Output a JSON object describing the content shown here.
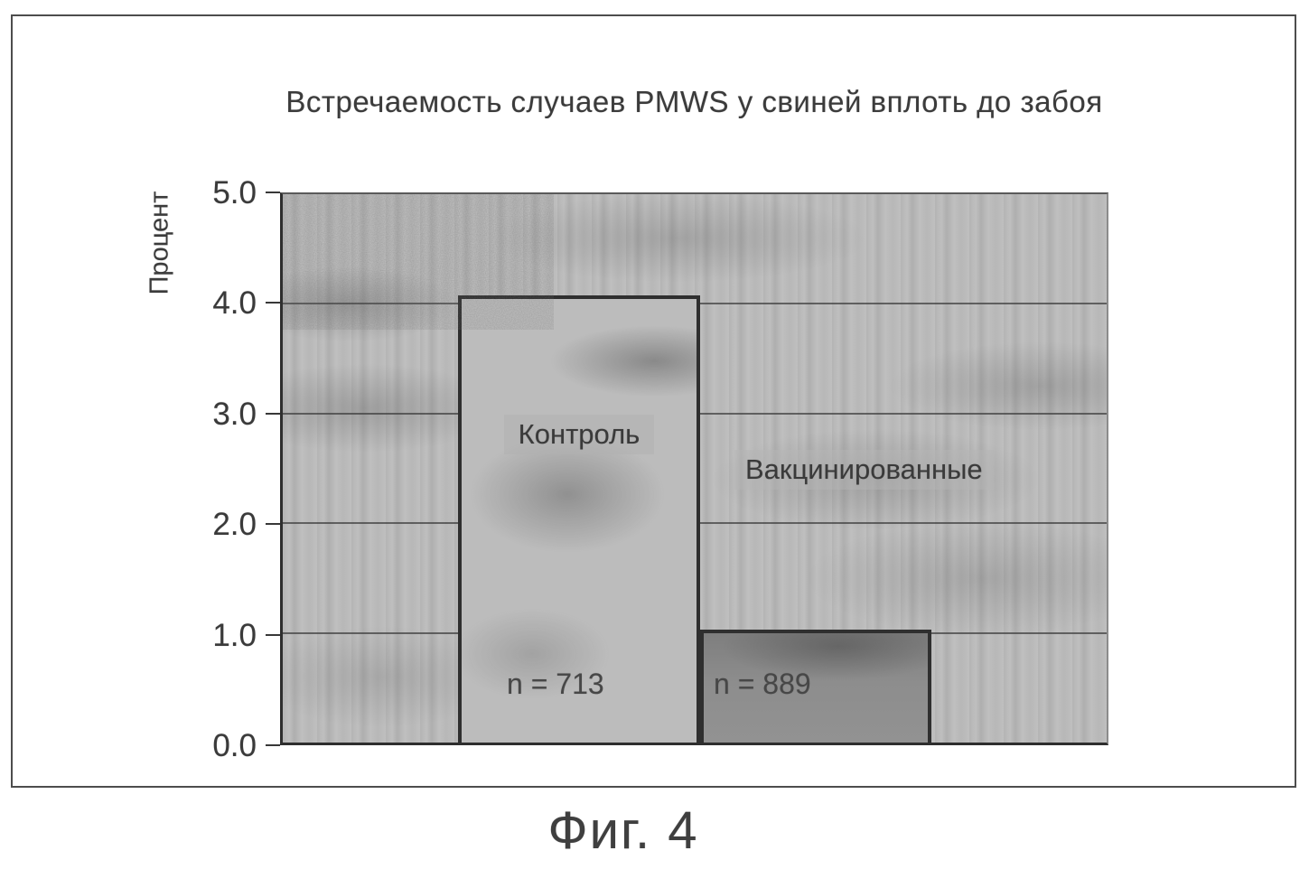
{
  "figure": {
    "caption": "Фиг. 4"
  },
  "chart_data": {
    "type": "bar",
    "title": "Встречаемость случаев PMWS у свиней вплоть до забоя",
    "xlabel": "",
    "ylabel": "Процент",
    "ylim": [
      0.0,
      5.0
    ],
    "yticks": [
      5.0,
      4.0,
      3.0,
      2.0,
      1.0,
      0.0
    ],
    "ytick_labels": [
      "5.0",
      "4.0",
      "3.0",
      "2.0",
      "1.0",
      "0.0"
    ],
    "grid": true,
    "legend_position": "none",
    "categories": [
      "Контроль",
      "Вакцинированные"
    ],
    "values": [
      4.08,
      1.03
    ],
    "bars": [
      {
        "label": "Контроль",
        "value": 4.08,
        "sample_size_label": "n = 713",
        "fill": "#bcbcbc",
        "label_placement": "inside-bar"
      },
      {
        "label": "Вакцинированные",
        "value": 1.03,
        "sample_size_label": "n = 889",
        "fill": "#8a8a8a",
        "label_placement": "above-bar"
      }
    ],
    "colors": {
      "plot_background": "#bfbfbf",
      "grid_line": "#4a4a4a",
      "axis_line": "#2e2e2e",
      "bar_border": "#2f2f2f",
      "text": "#3d3d3d"
    }
  }
}
